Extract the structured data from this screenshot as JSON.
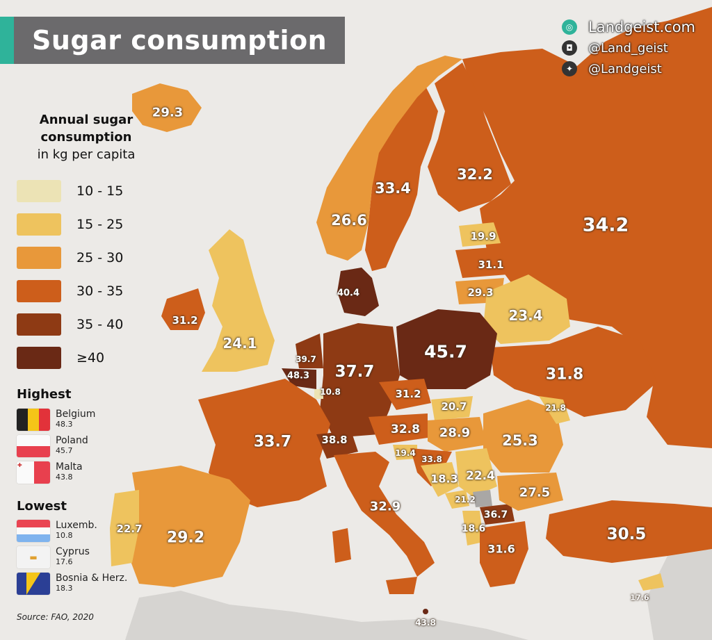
{
  "title": "Sugar consumption",
  "branding": {
    "website": "Landgeist.com",
    "instagram": "@Land_geist",
    "twitter": "@Landgeist"
  },
  "legend": {
    "heading_line1": "Annual sugar",
    "heading_line2": "consumption",
    "heading_line3": "in kg per capita",
    "items": [
      {
        "label": "10 - 15",
        "color": "#ece3b5"
      },
      {
        "label": "15 - 25",
        "color": "#eec35e"
      },
      {
        "label": "25 - 30",
        "color": "#e8983a"
      },
      {
        "label": "30 - 35",
        "color": "#cd5e1b"
      },
      {
        "label": "35 - 40",
        "color": "#8e3a14"
      },
      {
        "label": "≥40",
        "color": "#6a2915"
      }
    ]
  },
  "highest": {
    "heading": "Highest",
    "items": [
      {
        "name": "Belgium",
        "value": "48.3",
        "flag": "belgium-flag"
      },
      {
        "name": "Poland",
        "value": "45.7",
        "flag": "poland-flag"
      },
      {
        "name": "Malta",
        "value": "43.8",
        "flag": "malta-flag"
      }
    ]
  },
  "lowest": {
    "heading": "Lowest",
    "items": [
      {
        "name": "Luxemb.",
        "value": "10.8",
        "flag": "luxembourg-flag"
      },
      {
        "name": "Cyprus",
        "value": "17.6",
        "flag": "cyprus-flag"
      },
      {
        "name": "Bosnia & Herz.",
        "value": "18.3",
        "flag": "bosnia-flag"
      }
    ]
  },
  "source": "Source: FAO, 2020",
  "map_labels": [
    {
      "value": "29.3"
    },
    {
      "value": "33.4"
    },
    {
      "value": "32.2"
    },
    {
      "value": "26.6"
    },
    {
      "value": "34.2"
    },
    {
      "value": "19.9"
    },
    {
      "value": "31.1"
    },
    {
      "value": "29.3"
    },
    {
      "value": "40.4"
    },
    {
      "value": "23.4"
    },
    {
      "value": "31.2"
    },
    {
      "value": "24.1"
    },
    {
      "value": "45.7"
    },
    {
      "value": "37.7"
    },
    {
      "value": "39.7"
    },
    {
      "value": "48.3"
    },
    {
      "value": "10.8"
    },
    {
      "value": "31.8"
    },
    {
      "value": "31.2"
    },
    {
      "value": "20.7"
    },
    {
      "value": "21.8"
    },
    {
      "value": "33.7"
    },
    {
      "value": "38.8"
    },
    {
      "value": "32.8"
    },
    {
      "value": "28.9"
    },
    {
      "value": "25.3"
    },
    {
      "value": "19.4"
    },
    {
      "value": "33.8"
    },
    {
      "value": "18.3"
    },
    {
      "value": "22.4"
    },
    {
      "value": "27.5"
    },
    {
      "value": "21.2"
    },
    {
      "value": "36.7"
    },
    {
      "value": "22.7"
    },
    {
      "value": "29.2"
    },
    {
      "value": "32.9"
    },
    {
      "value": "18.6"
    },
    {
      "value": "31.6"
    },
    {
      "value": "30.5"
    },
    {
      "value": "17.6"
    },
    {
      "value": "43.8"
    }
  ]
}
